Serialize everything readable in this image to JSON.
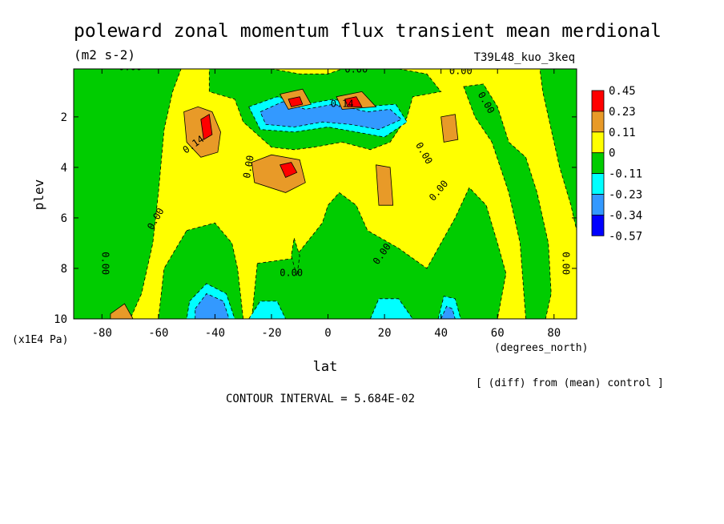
{
  "chart_data": {
    "type": "heatmap",
    "title": "poleward zonal momentum flux transient mean merdional",
    "units": "(m2 s-2)",
    "experiment": "T39L48_kuo_3keq",
    "xlabel": "lat",
    "x_units": "(degrees_north)",
    "ylabel": "plev",
    "y_units": "(x1E4 Pa)",
    "x_ticks": [
      "-80",
      "-60",
      "-40",
      "-20",
      "0",
      "20",
      "40",
      "60",
      "80"
    ],
    "x_tick_values": [
      -80,
      -60,
      -40,
      -20,
      0,
      20,
      40,
      60,
      80
    ],
    "y_ticks": [
      "2",
      "4",
      "6",
      "8",
      "10"
    ],
    "y_tick_values": [
      2,
      4,
      6,
      8,
      10
    ],
    "xlim": [
      -90,
      88
    ],
    "ylim": [
      10,
      0.1
    ],
    "legend": {
      "placement": "right",
      "labels": [
        "0.45",
        "0.23",
        "0.11",
        "0",
        "-0.11",
        "-0.23",
        "-0.34",
        "-0.57"
      ],
      "colors": [
        "#ff0000",
        "#e89a28",
        "#ffff00",
        "#00cc00",
        "#00ffff",
        "#3399ff",
        "#0000ff"
      ]
    },
    "background_color": "#ffff00",
    "note": "[ (diff) from (mean) control ]",
    "contour_interval_text": "CONTOUR INTERVAL = 5.684E-02",
    "contour_labels": [
      "0.00",
      "0.14"
    ],
    "regions": [
      {
        "level": "neg1",
        "color": "#00cc00",
        "pts": [
          [
            -90,
            0.1
          ],
          [
            -52,
            0.1
          ],
          [
            -55,
            1
          ],
          [
            -58,
            2.5
          ],
          [
            -60,
            5
          ],
          [
            -62,
            7
          ],
          [
            -66,
            9
          ],
          [
            -70,
            10
          ],
          [
            -90,
            10
          ]
        ]
      },
      {
        "level": "neg1",
        "color": "#00cc00",
        "pts": [
          [
            -42,
            0.1
          ],
          [
            -30,
            0.1
          ],
          [
            -20,
            0.1
          ],
          [
            -10,
            0.3
          ],
          [
            0,
            0.3
          ],
          [
            5,
            0.1
          ],
          [
            25,
            0.1
          ],
          [
            35,
            0.3
          ],
          [
            40,
            1
          ],
          [
            30,
            1.2
          ],
          [
            28,
            2
          ],
          [
            22,
            3
          ],
          [
            15,
            3.3
          ],
          [
            5,
            3.0
          ],
          [
            -5,
            3.2
          ],
          [
            -12,
            3.3
          ],
          [
            -20,
            3.2
          ],
          [
            -30,
            2.2
          ],
          [
            -33,
            1.3
          ],
          [
            -42,
            1.0
          ]
        ]
      },
      {
        "level": "neg1",
        "color": "#00cc00",
        "pts": [
          [
            -50,
            6.5
          ],
          [
            -40,
            6.2
          ],
          [
            -34,
            7
          ],
          [
            -32,
            8
          ],
          [
            -30,
            10
          ],
          [
            -60,
            10
          ],
          [
            -58,
            8
          ]
        ]
      },
      {
        "level": "neg1",
        "color": "#00cc00",
        "pts": [
          [
            -25,
            7.8
          ],
          [
            -12,
            7.6
          ],
          [
            -2,
            6.2
          ],
          [
            0,
            5.5
          ],
          [
            4,
            5.0
          ],
          [
            10,
            5.5
          ],
          [
            14,
            6.5
          ],
          [
            25,
            7.2
          ],
          [
            35,
            8
          ],
          [
            45,
            6
          ],
          [
            50,
            4.8
          ],
          [
            56,
            5.5
          ],
          [
            60,
            7
          ],
          [
            63,
            8.2
          ],
          [
            60,
            10
          ],
          [
            -27,
            10
          ]
        ]
      },
      {
        "level": "neg1",
        "color": "#00cc00",
        "pts": [
          [
            48,
            0.8
          ],
          [
            55,
            0.7
          ],
          [
            60,
            1.6
          ],
          [
            64,
            3.0
          ],
          [
            70,
            3.6
          ],
          [
            74,
            5
          ],
          [
            78,
            7
          ],
          [
            79,
            9
          ],
          [
            77,
            10
          ],
          [
            70,
            10
          ],
          [
            68,
            7
          ],
          [
            64,
            5
          ],
          [
            58,
            3
          ],
          [
            52,
            2
          ]
        ]
      },
      {
        "level": "neg1",
        "color": "#00cc00",
        "pts": [
          [
            75,
            0.1
          ],
          [
            88,
            0.1
          ],
          [
            88,
            6.5
          ],
          [
            86,
            5.5
          ],
          [
            82,
            4.0
          ],
          [
            79,
            2.5
          ],
          [
            76,
            1.0
          ]
        ]
      },
      {
        "level": "neg1",
        "color": "#00cc00",
        "pts": [
          [
            -12,
            6.8
          ],
          [
            -10,
            7.5
          ],
          [
            -11,
            8.3
          ],
          [
            -13,
            7.5
          ]
        ]
      },
      {
        "level": "neg2",
        "color": "#00ffff",
        "pts": [
          [
            -49,
            9.3
          ],
          [
            -43,
            8.6
          ],
          [
            -36,
            9.0
          ],
          [
            -33,
            10
          ],
          [
            -50,
            10
          ]
        ]
      },
      {
        "level": "neg2",
        "color": "#00ffff",
        "pts": [
          [
            -28,
            10
          ],
          [
            -24,
            9.3
          ],
          [
            -18,
            9.3
          ],
          [
            -15,
            10
          ]
        ]
      },
      {
        "level": "neg2",
        "color": "#00ffff",
        "pts": [
          [
            15,
            10
          ],
          [
            18,
            9.2
          ],
          [
            25,
            9.2
          ],
          [
            30,
            10
          ]
        ]
      },
      {
        "level": "neg2",
        "color": "#00ffff",
        "pts": [
          [
            39,
            10
          ],
          [
            41,
            9.1
          ],
          [
            45,
            9.2
          ],
          [
            47,
            10
          ]
        ]
      },
      {
        "level": "neg2",
        "color": "#00ffff",
        "pts": [
          [
            -28,
            1.6
          ],
          [
            -18,
            1.2
          ],
          [
            -8,
            1.5
          ],
          [
            2,
            1.3
          ],
          [
            12,
            1.6
          ],
          [
            24,
            1.5
          ],
          [
            28,
            2.2
          ],
          [
            20,
            2.8
          ],
          [
            10,
            2.6
          ],
          [
            0,
            2.4
          ],
          [
            -12,
            2.6
          ],
          [
            -24,
            2.5
          ]
        ]
      },
      {
        "level": "neg3",
        "color": "#3399ff",
        "pts": [
          [
            -47,
            9.6
          ],
          [
            -43,
            9.0
          ],
          [
            -37,
            9.3
          ],
          [
            -35,
            10
          ],
          [
            -47,
            10
          ]
        ]
      },
      {
        "level": "neg3",
        "color": "#3399ff",
        "pts": [
          [
            40,
            10
          ],
          [
            42,
            9.5
          ],
          [
            44,
            9.6
          ],
          [
            45,
            10
          ]
        ]
      },
      {
        "level": "neg3",
        "color": "#3399ff",
        "pts": [
          [
            -24,
            1.8
          ],
          [
            -16,
            1.4
          ],
          [
            -8,
            1.7
          ],
          [
            2,
            1.5
          ],
          [
            14,
            1.8
          ],
          [
            22,
            1.7
          ],
          [
            26,
            2.1
          ],
          [
            18,
            2.5
          ],
          [
            8,
            2.3
          ],
          [
            -2,
            2.2
          ],
          [
            -12,
            2.4
          ],
          [
            -22,
            2.3
          ]
        ]
      },
      {
        "level": "pos1",
        "color": "#e89a28",
        "pts": [
          [
            -51,
            1.8
          ],
          [
            -46,
            1.6
          ],
          [
            -41,
            1.8
          ],
          [
            -38,
            2.6
          ],
          [
            -39,
            3.4
          ],
          [
            -45,
            3.6
          ],
          [
            -50,
            3.0
          ]
        ]
      },
      {
        "level": "pos1",
        "color": "#e89a28",
        "pts": [
          [
            -27,
            3.8
          ],
          [
            -20,
            3.5
          ],
          [
            -10,
            3.7
          ],
          [
            -8,
            4.6
          ],
          [
            -15,
            5.0
          ],
          [
            -26,
            4.6
          ]
        ]
      },
      {
        "level": "pos1",
        "color": "#e89a28",
        "pts": [
          [
            17,
            3.9
          ],
          [
            22,
            4.0
          ],
          [
            23,
            5.5
          ],
          [
            18,
            5.5
          ]
        ]
      },
      {
        "level": "pos1",
        "color": "#e89a28",
        "pts": [
          [
            40,
            2.0
          ],
          [
            45,
            1.9
          ],
          [
            46,
            2.9
          ],
          [
            41,
            3.0
          ]
        ]
      },
      {
        "level": "pos1",
        "color": "#e89a28",
        "pts": [
          [
            -17,
            1.1
          ],
          [
            -9,
            0.9
          ],
          [
            -6,
            1.5
          ],
          [
            -14,
            1.7
          ]
        ]
      },
      {
        "level": "pos1",
        "color": "#e89a28",
        "pts": [
          [
            3,
            1.2
          ],
          [
            12,
            1.0
          ],
          [
            17,
            1.6
          ],
          [
            5,
            1.7
          ]
        ]
      },
      {
        "level": "pos1",
        "color": "#e89a28",
        "pts": [
          [
            -77,
            9.8
          ],
          [
            -72,
            9.4
          ],
          [
            -69,
            10
          ],
          [
            -77,
            10
          ]
        ]
      },
      {
        "level": "pos2",
        "color": "#ff0000",
        "pts": [
          [
            -45,
            2.1
          ],
          [
            -42,
            1.9
          ],
          [
            -41,
            2.7
          ],
          [
            -44,
            2.9
          ]
        ]
      },
      {
        "level": "pos2",
        "color": "#ff0000",
        "pts": [
          [
            -17,
            3.9
          ],
          [
            -13,
            3.8
          ],
          [
            -11,
            4.2
          ],
          [
            -15,
            4.4
          ]
        ]
      },
      {
        "level": "pos2",
        "color": "#ff0000",
        "pts": [
          [
            -14,
            1.3
          ],
          [
            -10,
            1.2
          ],
          [
            -9,
            1.5
          ],
          [
            -13,
            1.6
          ]
        ]
      },
      {
        "level": "pos2",
        "color": "#ff0000",
        "pts": [
          [
            6,
            1.3
          ],
          [
            10,
            1.2
          ],
          [
            12,
            1.6
          ],
          [
            7,
            1.6
          ]
        ]
      }
    ]
  }
}
